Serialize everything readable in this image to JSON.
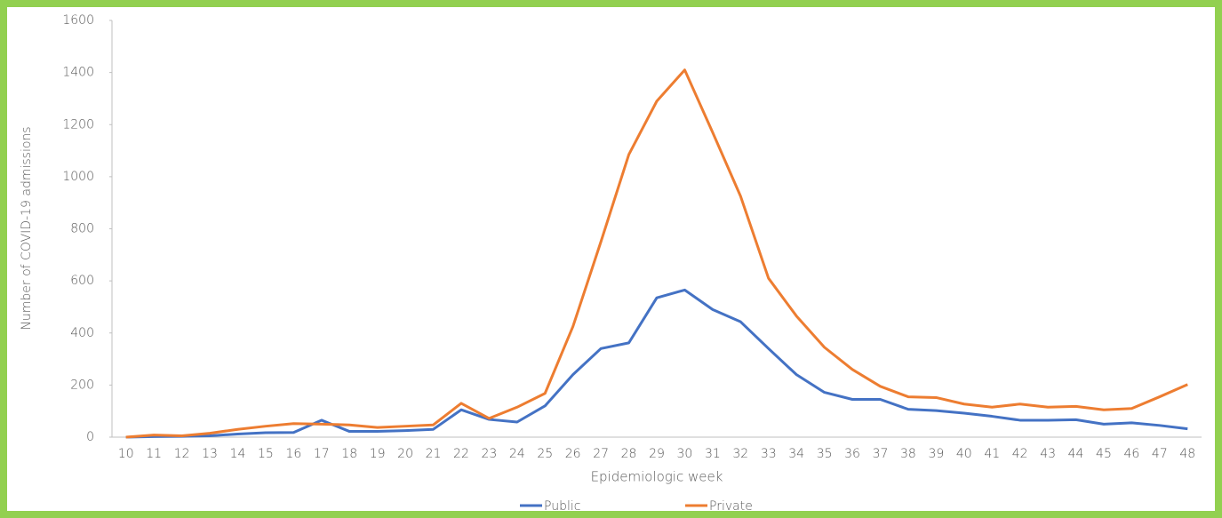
{
  "chart_data": {
    "type": "line",
    "x_label": "Epidemiologic week",
    "y_label": "Number of COVID-19 admissions",
    "categories": [
      "10",
      "11",
      "12",
      "13",
      "14",
      "15",
      "16",
      "17",
      "18",
      "19",
      "20",
      "21",
      "22",
      "23",
      "24",
      "25",
      "26",
      "27",
      "28",
      "29",
      "30",
      "31",
      "32",
      "33",
      "34",
      "35",
      "36",
      "37",
      "38",
      "39",
      "40",
      "41",
      "42",
      "43",
      "44",
      "45",
      "46",
      "47",
      "48"
    ],
    "series": [
      {
        "name": "Public",
        "color": "#4472c4",
        "values": [
          0,
          2,
          3,
          5,
          12,
          17,
          18,
          65,
          22,
          22,
          25,
          30,
          105,
          68,
          58,
          120,
          240,
          340,
          362,
          535,
          565,
          490,
          443,
          340,
          240,
          172,
          145,
          145,
          107,
          102,
          92,
          80,
          65,
          65,
          67,
          50,
          55,
          45,
          32
        ]
      },
      {
        "name": "Private",
        "color": "#ed7d31",
        "values": [
          0,
          8,
          5,
          15,
          30,
          42,
          52,
          50,
          47,
          37,
          42,
          47,
          130,
          72,
          115,
          168,
          425,
          750,
          1085,
          1290,
          1410,
          1170,
          925,
          610,
          465,
          345,
          260,
          195,
          155,
          152,
          127,
          115,
          127,
          115,
          118,
          105,
          110,
          155,
          202
        ]
      }
    ],
    "ylim": [
      0,
      1600
    ],
    "yticks": [
      0,
      200,
      400,
      600,
      800,
      1000,
      1200,
      1400,
      1600
    ],
    "legend": "bottom"
  }
}
